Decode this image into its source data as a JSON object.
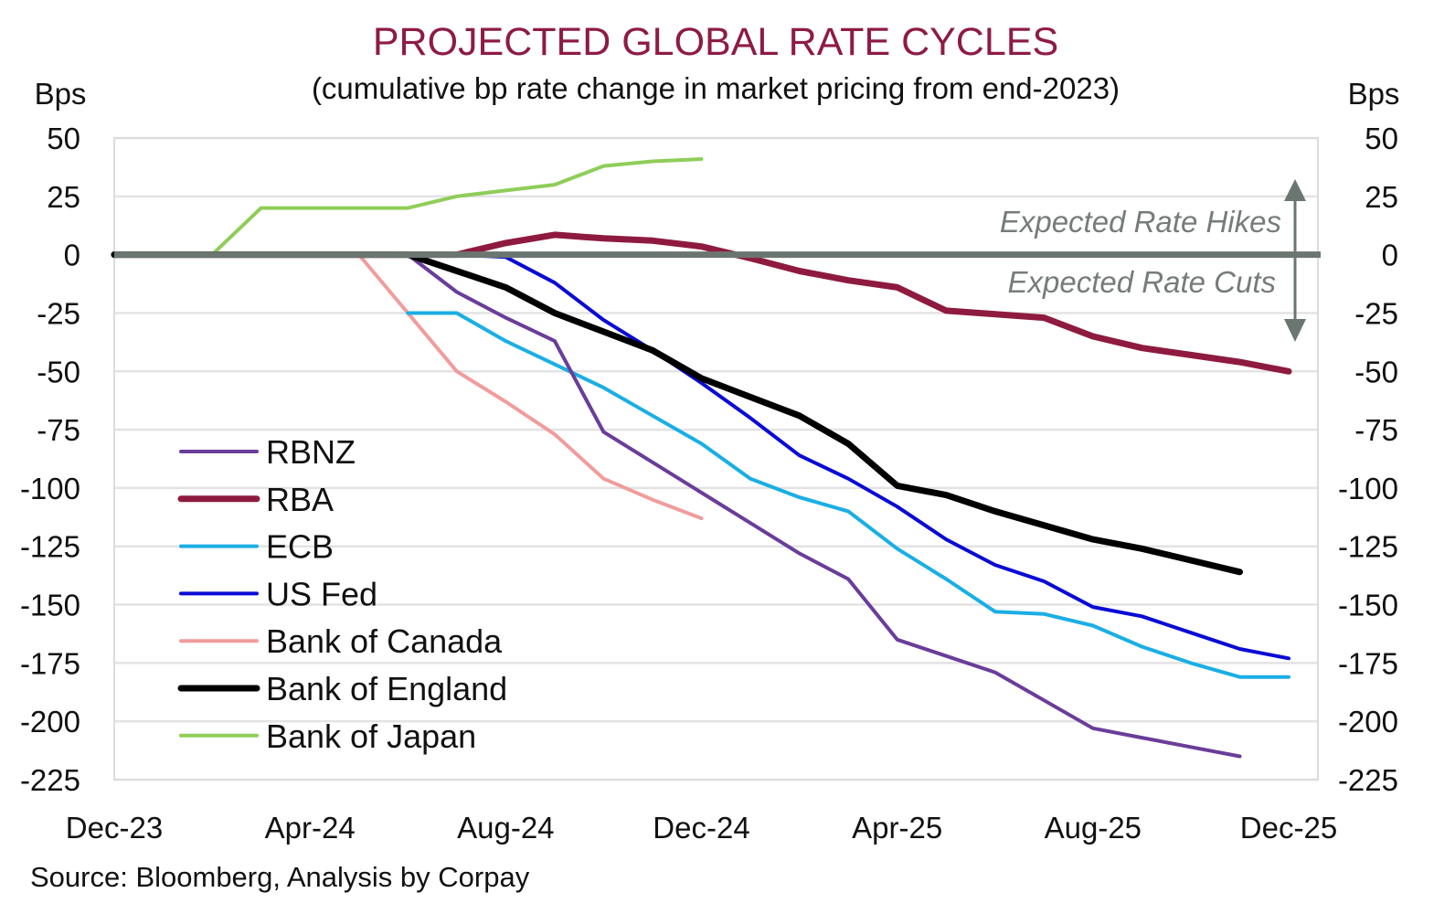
{
  "chart_data": {
    "type": "line",
    "title": "PROJECTED GLOBAL RATE CYCLES",
    "subtitle": "(cumulative bp rate change in market pricing from end-2023)",
    "ylabel_left": "Bps",
    "ylabel_right": "Bps",
    "xlabel": "",
    "ylim": [
      -225,
      50
    ],
    "yticks": [
      50,
      25,
      0,
      -25,
      -50,
      -75,
      -100,
      -125,
      -150,
      -175,
      -200,
      -225
    ],
    "ytick_labels": [
      "50",
      "25",
      "0",
      "-25",
      "-50",
      "-75",
      "-100",
      "-125",
      "-150",
      "-175",
      "-200",
      "-225"
    ],
    "x_months": [
      "Dec-23",
      "Jan-24",
      "Feb-24",
      "Mar-24",
      "Apr-24",
      "May-24",
      "Jun-24",
      "Jul-24",
      "Aug-24",
      "Sep-24",
      "Oct-24",
      "Nov-24",
      "Dec-24",
      "Jan-25",
      "Feb-25",
      "Mar-25",
      "Apr-25",
      "May-25",
      "Jun-25",
      "Jul-25",
      "Aug-25",
      "Sep-25",
      "Oct-25",
      "Nov-25",
      "Dec-25"
    ],
    "xlim_months": [
      0,
      25
    ],
    "xticks": [
      {
        "label": "Dec-23",
        "month": 0
      },
      {
        "label": "Apr-24",
        "month": 4
      },
      {
        "label": "Aug-24",
        "month": 8
      },
      {
        "label": "Dec-24",
        "month": 12
      },
      {
        "label": "Apr-25",
        "month": 16
      },
      {
        "label": "Aug-25",
        "month": 20
      },
      {
        "label": "Dec-25",
        "month": 24
      }
    ],
    "grid": true,
    "legend_position": "left-middle",
    "series": [
      {
        "name": "RBNZ",
        "color": "#6a3d9a",
        "width": "thin",
        "start_month": 0,
        "values": [
          0,
          0,
          0,
          0,
          0,
          0,
          0,
          -16,
          -27,
          -37,
          -76,
          -89,
          -102,
          -115,
          -128,
          -139,
          -165,
          -172,
          -179,
          -191,
          -203,
          -207,
          -211,
          -215
        ]
      },
      {
        "name": "RBA",
        "color": "#8e1b3f",
        "width": "thick",
        "start_month": 0,
        "values": [
          0,
          0,
          0,
          0,
          0,
          0,
          0,
          0,
          5,
          8.5,
          7,
          6,
          3.5,
          -1.5,
          -7,
          -11,
          -14,
          -24,
          -25.5,
          -27,
          -35,
          -40,
          -43,
          -46,
          -50
        ]
      },
      {
        "name": "ECB",
        "color": "#1aaee5",
        "width": "thin",
        "start_month": 6,
        "values": [
          -25,
          -25,
          -37,
          -47,
          -57,
          -69,
          -81,
          -96,
          -104,
          -110,
          -126,
          -139,
          -153,
          -154,
          -159,
          -168,
          -175,
          -181,
          -181
        ]
      },
      {
        "name": "US Fed",
        "color": "#0a0ad6",
        "width": "thin",
        "start_month": 0,
        "values": [
          0,
          0,
          0,
          0,
          0,
          0,
          0,
          0,
          -1,
          -12,
          -28,
          -41,
          -55,
          -70,
          -86,
          -96,
          -108,
          -122,
          -133,
          -140,
          -151,
          -155,
          -162,
          -169,
          -173
        ]
      },
      {
        "name": "Bank of Canada",
        "color": "#f19c9c",
        "width": "thin",
        "start_month": 5,
        "values": [
          0,
          -25,
          -50,
          -63,
          -77,
          -96,
          -105,
          -113
        ]
      },
      {
        "name": "Bank of England",
        "color": "#000000",
        "width": "thick",
        "start_month": 0,
        "values": [
          0,
          0,
          0,
          0,
          0,
          0,
          0,
          -7,
          -14,
          -25,
          -33,
          -41,
          -53,
          -61,
          -69,
          -81,
          -99,
          -103,
          -110,
          -116,
          -122,
          -126,
          -131,
          -136
        ]
      },
      {
        "name": "Bank of Japan",
        "color": "#8fcd58",
        "width": "thin",
        "start_month": 0,
        "values": [
          0,
          0,
          0,
          20,
          20,
          20,
          20,
          25,
          27.5,
          30,
          38,
          40,
          41
        ]
      }
    ],
    "annotations": [
      {
        "text": "Expected Rate Hikes",
        "direction": "up"
      },
      {
        "text": "Expected Rate Cuts",
        "direction": "down"
      }
    ],
    "source": "Source: Bloomberg, Analysis by Corpay",
    "colors": {
      "title": "#8e1b45",
      "zero_line": "#6b7670",
      "annotation_text": "#767c78",
      "arrow": "#6b7670",
      "grid": "#e3e3e3"
    }
  }
}
